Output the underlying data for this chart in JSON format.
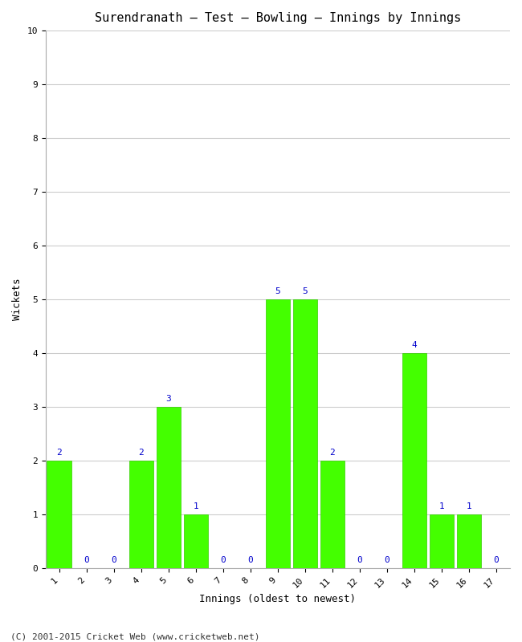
{
  "title": "Surendranath – Test – Bowling – Innings by Innings",
  "xlabel": "Innings (oldest to newest)",
  "ylabel": "Wickets",
  "categories": [
    1,
    2,
    3,
    4,
    5,
    6,
    7,
    8,
    9,
    10,
    11,
    12,
    13,
    14,
    15,
    16,
    17
  ],
  "values": [
    2,
    0,
    0,
    2,
    3,
    1,
    0,
    0,
    5,
    5,
    2,
    0,
    0,
    4,
    1,
    1,
    0
  ],
  "bar_color": "#44ff00",
  "bar_edge_color": "#33cc00",
  "label_color": "#0000cc",
  "ylim": [
    0,
    10
  ],
  "yticks": [
    0,
    1,
    2,
    3,
    4,
    5,
    6,
    7,
    8,
    9,
    10
  ],
  "background_color": "#ffffff",
  "grid_color": "#cccccc",
  "title_fontsize": 11,
  "axis_label_fontsize": 9,
  "tick_label_fontsize": 8,
  "bar_label_fontsize": 8,
  "footer": "(C) 2001-2015 Cricket Web (www.cricketweb.net)",
  "footer_fontsize": 8
}
